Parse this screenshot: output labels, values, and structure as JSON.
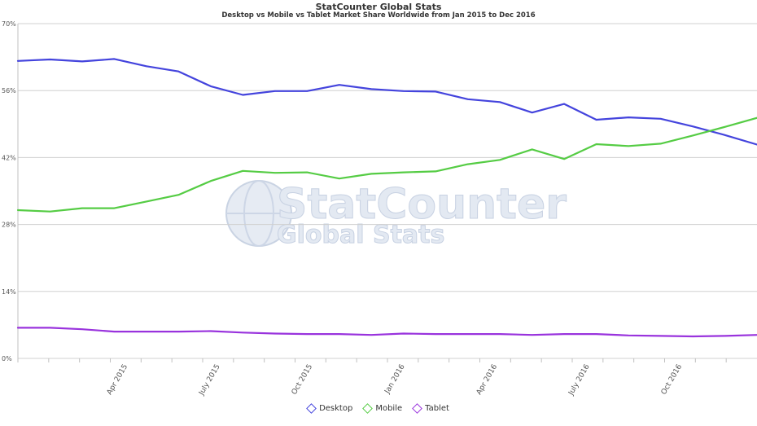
{
  "chart_data": {
    "type": "line",
    "title": "StatCounter Global Stats",
    "subtitle": "Desktop vs Mobile vs Tablet Market Share Worldwide from Jan 2015 to Dec 2016",
    "watermark": "StatCounter Global Stats",
    "x": [
      "2015-01",
      "2015-02",
      "2015-03",
      "2015-04",
      "2015-05",
      "2015-06",
      "2015-07",
      "2015-08",
      "2015-09",
      "2015-10",
      "2015-11",
      "2015-12",
      "2016-01",
      "2016-02",
      "2016-03",
      "2016-04",
      "2016-05",
      "2016-06",
      "2016-07",
      "2016-08",
      "2016-09",
      "2016-10",
      "2016-11",
      "2016-12"
    ],
    "x_tick_labels": [
      {
        "index": 3,
        "label": "Apr 2015"
      },
      {
        "index": 6,
        "label": "July 2015"
      },
      {
        "index": 9,
        "label": "Oct 2015"
      },
      {
        "index": 12,
        "label": "Jan 2016"
      },
      {
        "index": 15,
        "label": "Apr 2016"
      },
      {
        "index": 18,
        "label": "July 2016"
      },
      {
        "index": 21,
        "label": "Oct 2016"
      }
    ],
    "y_ticks": [
      "0%",
      "14%",
      "28%",
      "42%",
      "56%",
      "70%"
    ],
    "ylim": [
      0,
      70
    ],
    "grid": true,
    "legend_position": "bottom",
    "series": [
      {
        "name": "Desktop",
        "color": "#4444dd",
        "values": [
          62.2,
          62.5,
          62.1,
          62.6,
          61.1,
          60.0,
          56.9,
          55.1,
          55.9,
          55.9,
          57.2,
          56.3,
          55.9,
          55.8,
          54.2,
          53.6,
          51.4,
          53.2,
          49.9,
          50.4,
          50.1,
          48.5,
          46.7,
          44.7
        ]
      },
      {
        "name": "Mobile",
        "color": "#55cc44",
        "values": [
          31.0,
          30.7,
          31.4,
          31.4,
          32.8,
          34.2,
          37.1,
          39.2,
          38.8,
          38.9,
          37.6,
          38.6,
          38.9,
          39.1,
          40.6,
          41.5,
          43.7,
          41.7,
          44.8,
          44.4,
          44.9,
          46.6,
          48.4,
          50.3
        ]
      },
      {
        "name": "Tablet",
        "color": "#9933dd",
        "values": [
          6.4,
          6.4,
          6.1,
          5.6,
          5.6,
          5.6,
          5.7,
          5.4,
          5.2,
          5.1,
          5.1,
          4.9,
          5.2,
          5.1,
          5.1,
          5.1,
          4.9,
          5.1,
          5.1,
          4.8,
          4.7,
          4.6,
          4.7,
          4.9
        ]
      }
    ]
  }
}
